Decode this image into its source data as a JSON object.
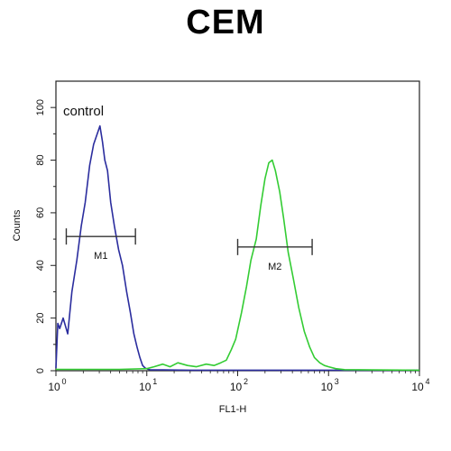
{
  "chart_data": {
    "type": "line",
    "title": "CEM",
    "xlabel": "FL1-H",
    "ylabel": "Counts",
    "xscale": "log",
    "xlim": [
      1,
      10000
    ],
    "ylim": [
      0,
      110
    ],
    "x_ticks": [
      {
        "base": "10",
        "exp": "0"
      },
      {
        "base": "10",
        "exp": "1"
      },
      {
        "base": "10",
        "exp": "2"
      },
      {
        "base": "10",
        "exp": "3"
      },
      {
        "base": "10",
        "exp": "4"
      }
    ],
    "x_tick_values": [
      1,
      10,
      100,
      1000,
      10000
    ],
    "y_ticks": [
      "0",
      "20",
      "40",
      "60",
      "80",
      "100"
    ],
    "y_tick_values": [
      0,
      20,
      40,
      60,
      80,
      100
    ],
    "annotation": "control",
    "series": [
      {
        "color": "#2b2d9e",
        "x": [
          1.0,
          1.05,
          1.1,
          1.2,
          1.35,
          1.5,
          1.7,
          1.9,
          2.1,
          2.35,
          2.6,
          2.85,
          3.05,
          3.25,
          3.45,
          3.7,
          4.0,
          4.4,
          4.9,
          5.4,
          6.0,
          6.6,
          7.2,
          7.8,
          8.4,
          9.0,
          9.6,
          10.2,
          11.0,
          15.0,
          30.0,
          100.0,
          1000.0,
          10000.0
        ],
        "y": [
          1,
          18,
          16,
          20,
          14,
          30,
          42,
          55,
          64,
          78,
          86,
          90,
          93,
          87,
          80,
          76,
          64,
          55,
          46,
          40,
          30,
          22,
          14,
          9,
          5,
          2,
          1,
          0.6,
          0.3,
          0.3,
          0.2,
          0.2,
          0.2,
          0.2
        ]
      },
      {
        "color": "#33cc33",
        "x": [
          1.0,
          5.0,
          10.0,
          12.0,
          15.0,
          18.0,
          22.0,
          28.0,
          35.0,
          45.0,
          55.0,
          65.0,
          75.0,
          85.0,
          95.0,
          110.0,
          125.0,
          140.0,
          160.0,
          180.0,
          200.0,
          220.0,
          240.0,
          260.0,
          290.0,
          320.0,
          360.0,
          410.0,
          470.0,
          540.0,
          620.0,
          700.0,
          800.0,
          900.0,
          1000.0,
          1200.0,
          1500.0,
          3000.0,
          10000.0
        ],
        "y": [
          0.5,
          0.5,
          0.8,
          1.5,
          2.5,
          1.5,
          3,
          2,
          1.5,
          2.5,
          2,
          3,
          4,
          8,
          12,
          22,
          32,
          42,
          50,
          63,
          73,
          79,
          80,
          76,
          68,
          58,
          45,
          35,
          24,
          15,
          9,
          5,
          3,
          2,
          1.5,
          0.8,
          0.4,
          0.3,
          0.2
        ]
      }
    ],
    "markers": [
      {
        "label": "M1",
        "x_start": 1.3,
        "x_end": 7.5,
        "y": 51
      },
      {
        "label": "M2",
        "x_start": 100,
        "x_end": 660,
        "y": 47
      }
    ]
  }
}
